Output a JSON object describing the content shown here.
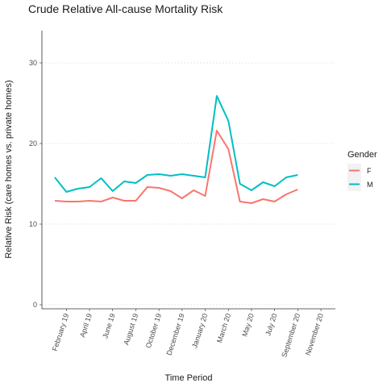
{
  "chart_data": {
    "type": "line",
    "title": "Crude Relative All-cause Mortality Risk",
    "xlabel": "Time Period",
    "ylabel": "Relative Risk (care homes vs. private homes)",
    "ylim": [
      -0.5,
      34
    ],
    "yticks": [
      0,
      10,
      20,
      30
    ],
    "grid": "horizontal",
    "legend": {
      "title": "Gender",
      "placement": "right"
    },
    "x_tick_labels": [
      "February 19",
      "April 19",
      "June 19",
      "August 19",
      "October 19",
      "December 19",
      "January 20",
      "March 20",
      "May 20",
      "July 20",
      "September 20",
      "November 20"
    ],
    "x_tick_index": [
      1,
      3,
      5,
      7,
      9,
      11,
      13,
      15,
      17,
      19,
      21,
      23
    ],
    "series": [
      {
        "name": "F",
        "color": "#F8766D",
        "values": [
          12.9,
          12.8,
          12.8,
          12.9,
          12.8,
          13.3,
          12.9,
          12.9,
          14.6,
          14.5,
          14.1,
          13.2,
          14.2,
          13.5,
          21.6,
          19.3,
          12.8,
          12.6,
          13.1,
          12.8,
          13.7,
          14.3
        ]
      },
      {
        "name": "M",
        "color": "#00BFC4",
        "values": [
          15.8,
          14.0,
          14.4,
          14.6,
          15.7,
          14.1,
          15.3,
          15.1,
          16.1,
          16.2,
          16.0,
          16.2,
          16.0,
          15.8,
          25.9,
          22.8,
          15.0,
          14.2,
          15.2,
          14.7,
          15.8,
          16.1
        ]
      }
    ]
  }
}
